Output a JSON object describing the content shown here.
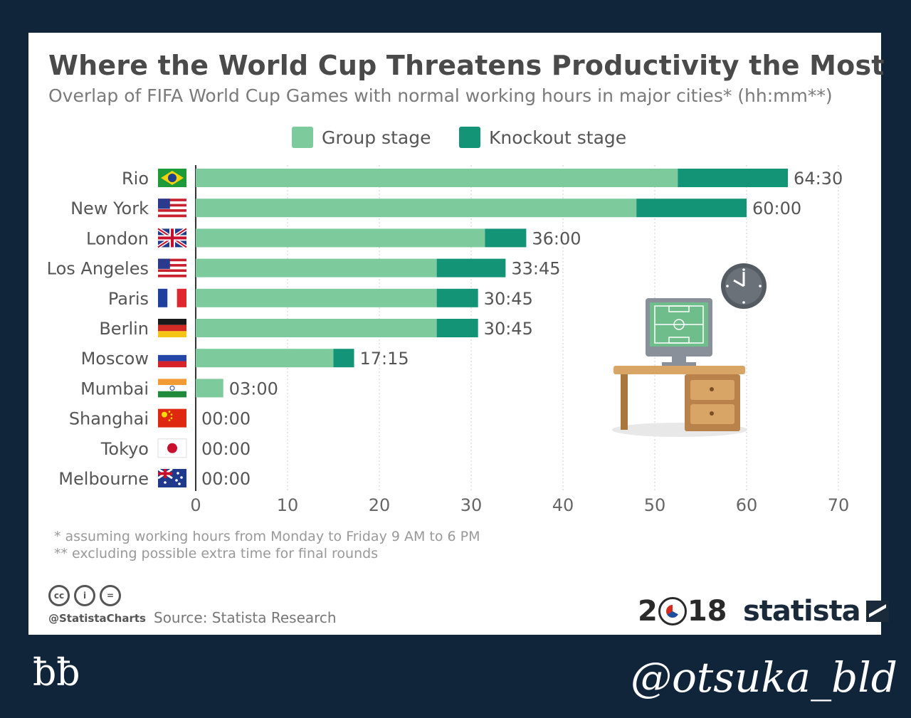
{
  "colors": {
    "background": "#10243a",
    "group_stage": "#7dcb9c",
    "knockout_stage": "#139476",
    "card": "#ffffff"
  },
  "chart_data": {
    "type": "bar",
    "orientation": "horizontal",
    "stacked": true,
    "title": "Where the World Cup Threatens Productivity the Most",
    "subtitle": "Overlap of FIFA World Cup Games with normal working hours in major cities* (hh:mm**)",
    "categories": [
      "Rio",
      "New York",
      "London",
      "Los Angeles",
      "Paris",
      "Berlin",
      "Moscow",
      "Mumbai",
      "Shanghai",
      "Tokyo",
      "Melbourne"
    ],
    "series": [
      {
        "name": "Group stage",
        "values": [
          52.5,
          48,
          31.5,
          26.25,
          26.25,
          26.25,
          15,
          3,
          0,
          0,
          0
        ]
      },
      {
        "name": "Knockout stage",
        "values": [
          12,
          12,
          4.5,
          7.5,
          4.5,
          4.5,
          2.25,
          0,
          0,
          0,
          0
        ]
      }
    ],
    "totals_labels": [
      "64:30",
      "60:00",
      "36:00",
      "33:45",
      "30:45",
      "30:45",
      "17:15",
      "03:00",
      "00:00",
      "00:00",
      "00:00"
    ],
    "xlim": [
      0,
      70
    ],
    "xticks": [
      0,
      10,
      20,
      30,
      40,
      50,
      60,
      70
    ],
    "xlabel": "",
    "ylabel": "",
    "grid": true,
    "legend_position": "top"
  },
  "footnotes": [
    "*   assuming working hours from Monday to Friday 9 AM to 6 PM",
    "** excluding possible extra time for final rounds"
  ],
  "footer": {
    "cc_icons": [
      "cc",
      "by",
      "nd"
    ],
    "handle": "@StatistaCharts",
    "source": "Source: Statista Research",
    "wc_logo_left": "2",
    "wc_logo_right": "18",
    "brand": "statista"
  },
  "overlay": {
    "corner_logo": "ƀƀ",
    "signature": "@otsuka_bld"
  },
  "illustration": {
    "description_icons": [
      "clock-icon",
      "monitor-icon",
      "desk-icon"
    ]
  }
}
